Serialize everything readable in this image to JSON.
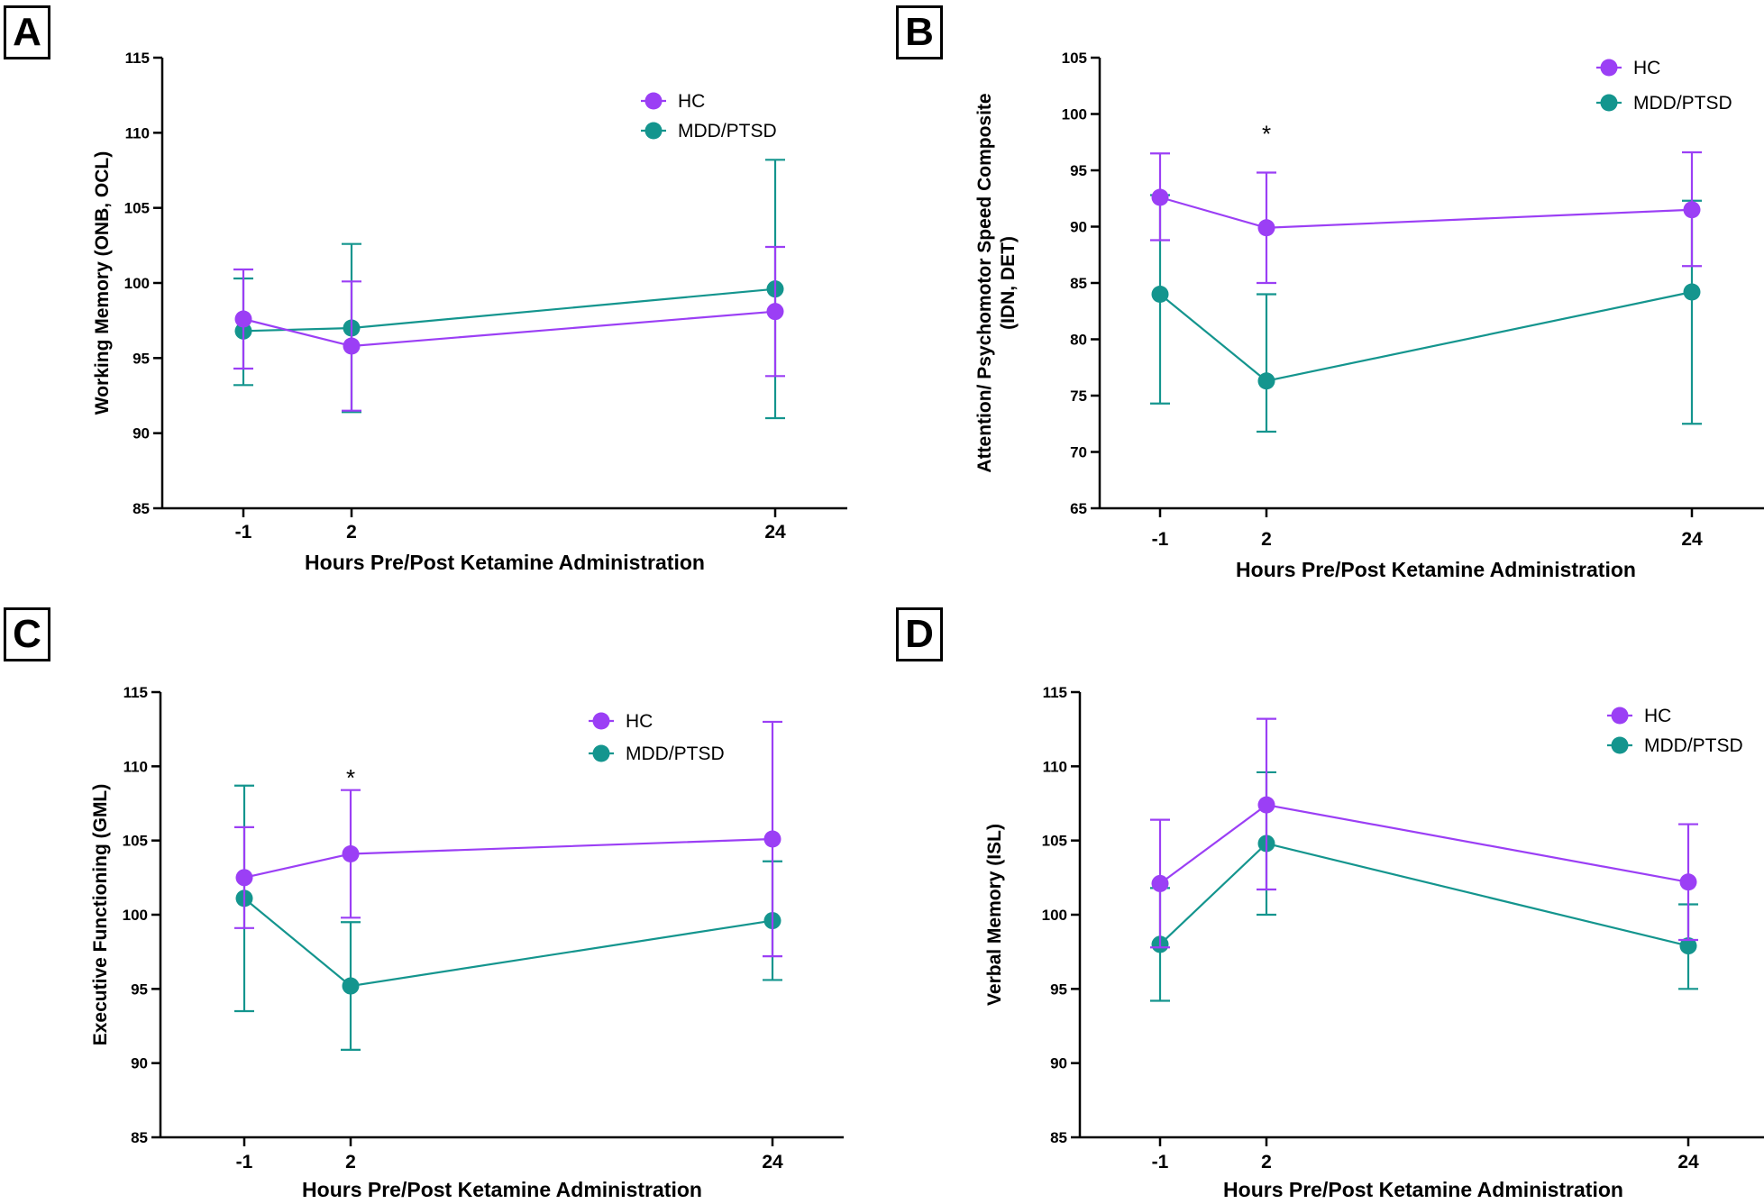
{
  "colors": {
    "HC": "#9b3ff5",
    "MDD/PTSD": "#14958e",
    "axis": "#000000"
  },
  "chart_data": [
    {
      "id": "A",
      "type": "line",
      "panel_label": "A",
      "xlabel": "Hours Pre/Post Ketamine Administration",
      "ylabel": [
        "Working Memory (ONB, OCL)"
      ],
      "x": [
        -1,
        2,
        24
      ],
      "x_tick_labels": [
        "-1",
        "2",
        "24"
      ],
      "ylim": [
        85,
        115
      ],
      "y_ticks": [
        85,
        90,
        95,
        100,
        105,
        110,
        115
      ],
      "series": [
        {
          "name": "HC",
          "values": [
            97.6,
            95.8,
            98.1
          ],
          "err_low": [
            94.3,
            91.5,
            93.8
          ],
          "err_high": [
            100.9,
            100.1,
            102.4
          ]
        },
        {
          "name": "MDD/PTSD",
          "values": [
            96.8,
            97.0,
            99.6
          ],
          "err_low": [
            93.2,
            91.4,
            91.0
          ],
          "err_high": [
            100.3,
            102.6,
            108.2
          ]
        }
      ],
      "legend": [
        "HC",
        "MDD/PTSD"
      ],
      "annotations": []
    },
    {
      "id": "B",
      "type": "line",
      "panel_label": "B",
      "xlabel": "Hours Pre/Post Ketamine Administration",
      "ylabel": [
        "Attention/ Psychomotor Speed Composite",
        "(IDN, DET)"
      ],
      "x": [
        -1,
        2,
        24
      ],
      "x_tick_labels": [
        "-1",
        "2",
        "24"
      ],
      "ylim": [
        65,
        105
      ],
      "y_ticks": [
        65,
        70,
        75,
        80,
        85,
        90,
        95,
        100,
        105
      ],
      "series": [
        {
          "name": "HC",
          "values": [
            92.6,
            89.9,
            91.5
          ],
          "err_low": [
            88.8,
            85.0,
            86.5
          ],
          "err_high": [
            96.5,
            94.8,
            96.6
          ]
        },
        {
          "name": "MDD/PTSD",
          "values": [
            84.0,
            76.3,
            84.2
          ],
          "err_low": [
            74.3,
            71.8,
            72.5
          ],
          "err_high": [
            92.8,
            84.0,
            92.3
          ]
        }
      ],
      "legend": [
        "HC",
        "MDD/PTSD"
      ],
      "annotations": [
        {
          "text": "*",
          "x": 2,
          "y": 98.5
        }
      ]
    },
    {
      "id": "C",
      "type": "line",
      "panel_label": "C",
      "xlabel": "Hours Pre/Post Ketamine Administration",
      "ylabel": [
        "Executive Functioning (GML)"
      ],
      "x": [
        -1,
        2,
        24
      ],
      "x_tick_labels": [
        "-1",
        "2",
        "24"
      ],
      "ylim": [
        85,
        115
      ],
      "y_ticks": [
        85,
        90,
        95,
        100,
        105,
        110,
        115
      ],
      "series": [
        {
          "name": "HC",
          "values": [
            102.5,
            104.1,
            105.1
          ],
          "err_low": [
            99.1,
            99.8,
            97.2
          ],
          "err_high": [
            105.9,
            108.4,
            113.0
          ]
        },
        {
          "name": "MDD/PTSD",
          "values": [
            101.1,
            95.2,
            99.6
          ],
          "err_low": [
            93.5,
            90.9,
            95.6
          ],
          "err_high": [
            108.7,
            99.5,
            103.6
          ]
        }
      ],
      "legend": [
        "HC",
        "MDD/PTSD"
      ],
      "annotations": [
        {
          "text": "*",
          "x": 2,
          "y": 109.4
        }
      ]
    },
    {
      "id": "D",
      "type": "line",
      "panel_label": "D",
      "xlabel": "Hours Pre/Post Ketamine Administration",
      "ylabel": [
        "Verbal Memory (ISL)"
      ],
      "x": [
        -1,
        2,
        24
      ],
      "x_tick_labels": [
        "-1",
        "2",
        "24"
      ],
      "ylim": [
        85,
        115
      ],
      "y_ticks": [
        85,
        90,
        95,
        100,
        105,
        110,
        115
      ],
      "series": [
        {
          "name": "HC",
          "values": [
            102.1,
            107.4,
            102.2
          ],
          "err_low": [
            97.8,
            101.7,
            98.3
          ],
          "err_high": [
            106.4,
            113.2,
            106.1
          ]
        },
        {
          "name": "MDD/PTSD",
          "values": [
            98.0,
            104.8,
            97.9
          ],
          "err_low": [
            94.2,
            100.0,
            95.0
          ],
          "err_high": [
            101.8,
            109.6,
            100.7
          ]
        }
      ],
      "legend": [
        "HC",
        "MDD/PTSD"
      ],
      "annotations": []
    }
  ]
}
